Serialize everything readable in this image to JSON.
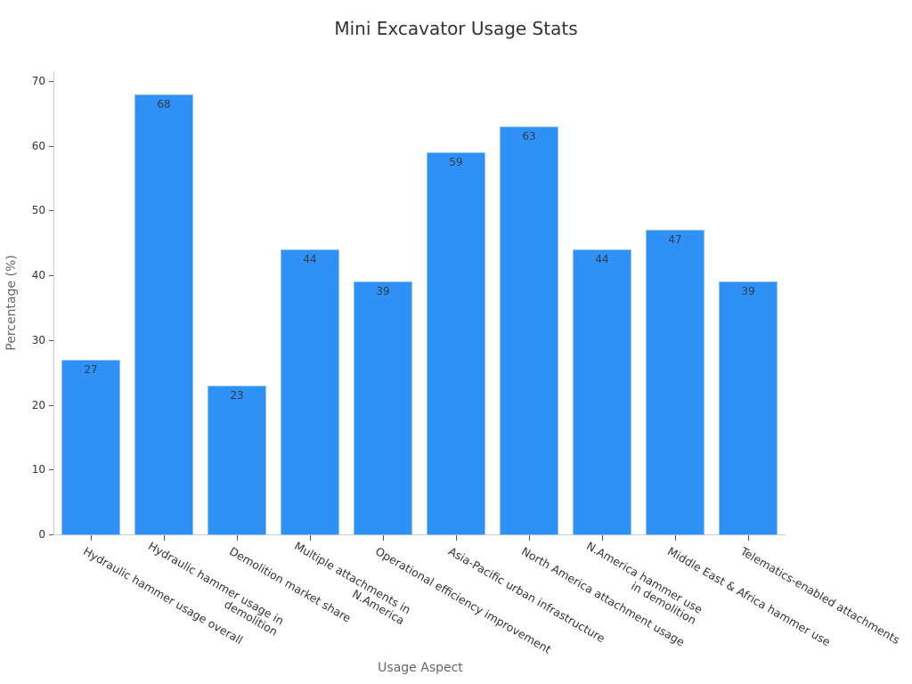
{
  "chart_data": {
    "type": "bar",
    "title": "Mini Excavator Usage Stats",
    "xlabel": "Usage Aspect",
    "ylabel": "Percentage (%)",
    "ylim": [
      0,
      70
    ],
    "yticks": [
      0,
      10,
      20,
      30,
      40,
      50,
      60,
      70
    ],
    "grid": false,
    "legend": null,
    "bar_color": "#2f91f5",
    "categories": [
      "Hydraulic hammer usage overall",
      "Hydraulic hammer usage in demolition",
      "Demolition market share",
      "Multiple attachments in N.America",
      "Operational efficiency improvement",
      "Asia-Pacific urban infrastructure",
      "North America attachment usage",
      "N.America hammer use in demolition",
      "Middle East & Africa hammer use",
      "Telematics-enabled attachments"
    ],
    "category_display": [
      "Hydraulic hammer usage overall",
      "Hydraulic hammer usage in\ndemolition",
      "Demolition market share",
      "Multiple attachments in\nN.America",
      "Operational efficiency improvement",
      "Asia-Pacific urban infrastructure",
      "North America attachment usage",
      "N.America hammer use\nin demolition",
      "Middle East & Africa hammer use",
      "Telematics-enabled attachments"
    ],
    "values": [
      27,
      68,
      23,
      44,
      39,
      59,
      63,
      44,
      47,
      39
    ],
    "data_labels": [
      "27",
      "68",
      "23",
      "44",
      "39",
      "59",
      "63",
      "44",
      "47",
      "39"
    ]
  }
}
